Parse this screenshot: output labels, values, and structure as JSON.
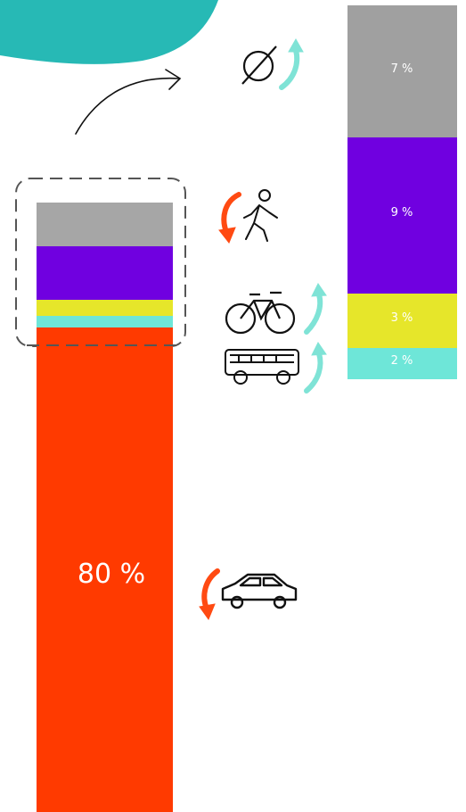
{
  "chart_data": [
    {
      "type": "bar",
      "stacked": true,
      "orientation": "vertical",
      "segments": [
        {
          "name": "",
          "icon": "empty-set-icon",
          "value": null,
          "label": "",
          "color": "#a6a6a6"
        },
        {
          "name": "",
          "icon": "pedestrian-icon",
          "value": null,
          "label": "",
          "color": "#7000e0"
        },
        {
          "name": "",
          "icon": "bicycle-icon",
          "value": null,
          "label": "",
          "color": "#e6e62a"
        },
        {
          "name": "",
          "icon": "bus-icon",
          "value": null,
          "label": "",
          "color": "#6ee6d8"
        },
        {
          "name": "",
          "icon": "car-icon",
          "value": 80,
          "label": "80 %",
          "color": "#ff3a00"
        }
      ],
      "zoom_region": "top four segments (dashed box)"
    },
    {
      "type": "bar",
      "stacked": true,
      "orientation": "vertical",
      "zoomed_from": "top four segments of first bar",
      "segments": [
        {
          "name": "",
          "icon": "empty-set-icon",
          "value": 7,
          "label": "7 %",
          "color": "#a0a0a0",
          "trend": "up"
        },
        {
          "name": "",
          "icon": "pedestrian-icon",
          "value": 9,
          "label": "9 %",
          "color": "#7000e0",
          "trend": "down"
        },
        {
          "name": "",
          "icon": "bicycle-icon",
          "value": 3,
          "label": "3 %",
          "color": "#e6e62a",
          "trend": "up"
        },
        {
          "name": "",
          "icon": "bus-icon",
          "value": 2,
          "label": "2 %",
          "color": "#6ee6d8",
          "trend": "up"
        }
      ]
    }
  ],
  "trend_colors": {
    "up": "#7fe3d6",
    "down": "#ff4a12"
  },
  "accent_blob_color": "#27b9b5",
  "icons": [
    "empty-set-icon",
    "pedestrian-icon",
    "bicycle-icon",
    "bus-icon",
    "car-icon",
    "curved-arrow-icon",
    "up-arrow-icon",
    "down-arrow-icon"
  ]
}
